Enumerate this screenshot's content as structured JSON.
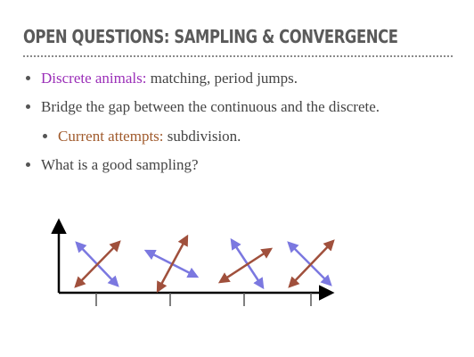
{
  "title": "OPEN QUESTIONS: SAMPLING & CONVERGENCE",
  "bullets": [
    {
      "highlight": "Discrete animals:",
      "text": " matching, period jumps."
    },
    {
      "text": "Bridge the gap between the continuous and the discrete."
    },
    {
      "highlight": "Current attempts:",
      "text": " subdivision."
    },
    {
      "text": "What is a good sampling?"
    }
  ],
  "colors": {
    "title": "#5a5a5a",
    "body_text": "#444444",
    "highlight_purple": "#9b2fb8",
    "highlight_brown": "#a05a2c",
    "arrow_blue": "#7b78e0",
    "arrow_red": "#a0503c",
    "axis": "#000000",
    "tick": "#555555"
  }
}
